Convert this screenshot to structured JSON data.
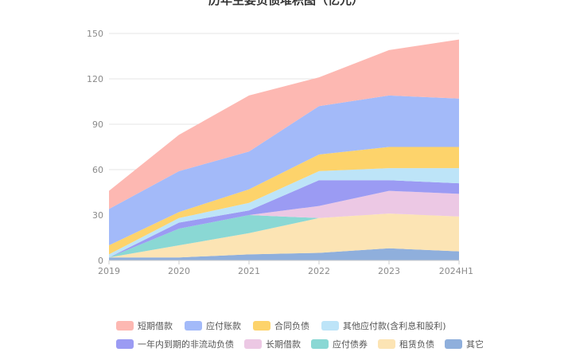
{
  "chart_data": {
    "type": "area",
    "stacked": true,
    "title": "历年主要负债堆积图（亿元）",
    "categories": [
      "2019",
      "2020",
      "2021",
      "2022",
      "2023",
      "2024H1"
    ],
    "y_ticks": [
      "0",
      "30",
      "60",
      "90",
      "120",
      "150"
    ],
    "ylim": [
      0,
      150
    ],
    "grid": true,
    "legend_position": "bottom",
    "series": [
      {
        "name": "其它",
        "color": "#8fafdc",
        "values": [
          2,
          2,
          4,
          5,
          8,
          6
        ]
      },
      {
        "name": "租赁负债",
        "color": "#fce4b4",
        "values": [
          0,
          8,
          14,
          23,
          23,
          23
        ]
      },
      {
        "name": "应付债券",
        "color": "#8ad8d4",
        "values": [
          0,
          11,
          12,
          0,
          0,
          0
        ]
      },
      {
        "name": "长期借款",
        "color": "#ecc8e4",
        "values": [
          0,
          0,
          0,
          8,
          15,
          15
        ]
      },
      {
        "name": "一年内到期的非流动负债",
        "color": "#9b9bf3",
        "values": [
          0,
          4,
          3,
          17,
          7,
          7
        ]
      },
      {
        "name": "其他应付款(含利息和股利)",
        "color": "#bde4f8",
        "values": [
          2,
          3,
          5,
          6,
          8,
          10
        ]
      },
      {
        "name": "合同负债",
        "color": "#fdd36b",
        "values": [
          6,
          4,
          9,
          11,
          14,
          14
        ]
      },
      {
        "name": "应付账款",
        "color": "#a3baf9",
        "values": [
          24,
          27,
          25,
          32,
          34,
          32
        ]
      },
      {
        "name": "短期借款",
        "color": "#fdb8b2",
        "values": [
          12,
          24,
          37,
          19,
          30,
          39
        ]
      }
    ],
    "legend_rows": [
      [
        "短期借款",
        "应付账款",
        "合同负债",
        "其他应付款(含利息和股利)"
      ],
      [
        "一年内到期的非流动负债",
        "长期借款",
        "应付债券",
        "租赁负债",
        "其它"
      ]
    ]
  }
}
